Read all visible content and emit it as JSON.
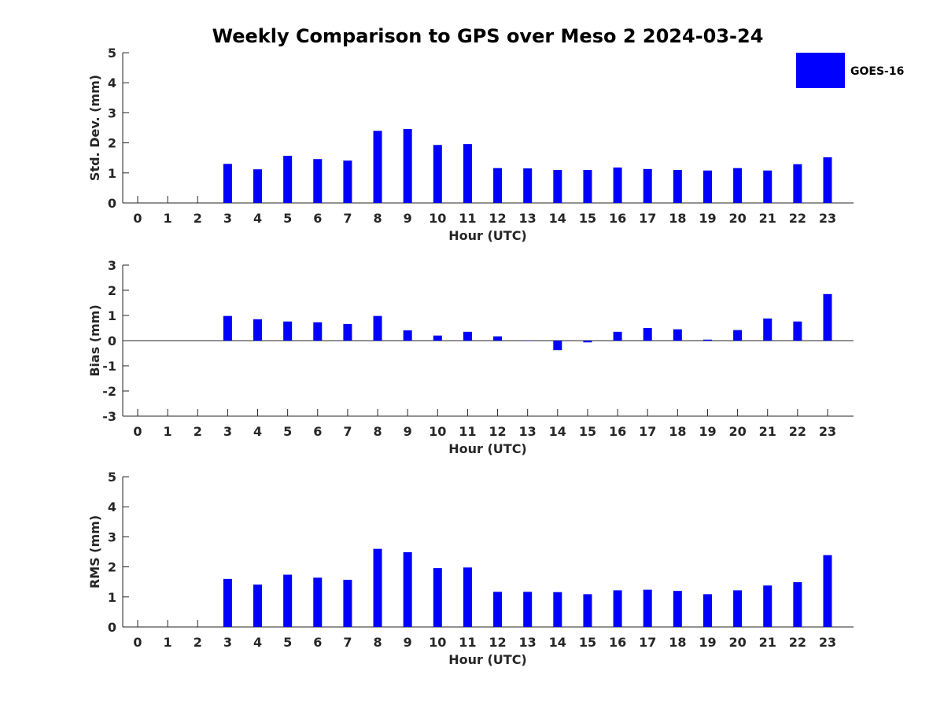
{
  "title": "Weekly Comparison to GPS over Meso 2 2024-03-24",
  "legend": {
    "label": "GOES-16",
    "color": "#0000ff",
    "position": "top-right"
  },
  "chart_data": [
    {
      "type": "bar",
      "id": "std",
      "ylabel": "Std. Dev. (mm)",
      "xlabel": "Hour (UTC)",
      "ylim": [
        0,
        5
      ],
      "yticks": [
        0,
        1,
        2,
        3,
        4,
        5
      ],
      "categories": [
        "0",
        "1",
        "2",
        "3",
        "4",
        "5",
        "6",
        "7",
        "8",
        "9",
        "10",
        "11",
        "12",
        "13",
        "14",
        "15",
        "16",
        "17",
        "18",
        "19",
        "20",
        "21",
        "22",
        "23"
      ],
      "series": [
        {
          "name": "GOES-16",
          "values": [
            null,
            null,
            null,
            1.3,
            1.12,
            1.57,
            1.46,
            1.41,
            2.4,
            2.46,
            1.93,
            1.96,
            1.16,
            1.15,
            1.1,
            1.1,
            1.18,
            1.13,
            1.1,
            1.08,
            1.16,
            1.08,
            1.29,
            1.52
          ]
        }
      ]
    },
    {
      "type": "bar",
      "id": "bias",
      "ylabel": "Bias (mm)",
      "xlabel": "Hour (UTC)",
      "ylim": [
        -3,
        3
      ],
      "yticks": [
        -3,
        -2,
        -1,
        0,
        1,
        2,
        3
      ],
      "categories": [
        "0",
        "1",
        "2",
        "3",
        "4",
        "5",
        "6",
        "7",
        "8",
        "9",
        "10",
        "11",
        "12",
        "13",
        "14",
        "15",
        "16",
        "17",
        "18",
        "19",
        "20",
        "21",
        "22",
        "23"
      ],
      "series": [
        {
          "name": "GOES-16",
          "values": [
            null,
            null,
            null,
            0.98,
            0.85,
            0.76,
            0.73,
            0.66,
            0.98,
            0.41,
            0.2,
            0.35,
            0.17,
            0.0,
            -0.38,
            -0.07,
            0.35,
            0.5,
            0.45,
            0.04,
            0.42,
            0.88,
            0.76,
            1.85
          ]
        }
      ]
    },
    {
      "type": "bar",
      "id": "rms",
      "ylabel": "RMS (mm)",
      "xlabel": "Hour (UTC)",
      "ylim": [
        0,
        5
      ],
      "yticks": [
        0,
        1,
        2,
        3,
        4,
        5
      ],
      "categories": [
        "0",
        "1",
        "2",
        "3",
        "4",
        "5",
        "6",
        "7",
        "8",
        "9",
        "10",
        "11",
        "12",
        "13",
        "14",
        "15",
        "16",
        "17",
        "18",
        "19",
        "20",
        "21",
        "22",
        "23"
      ],
      "series": [
        {
          "name": "GOES-16",
          "values": [
            null,
            null,
            null,
            1.6,
            1.41,
            1.74,
            1.64,
            1.57,
            2.6,
            2.49,
            1.96,
            1.98,
            1.17,
            1.17,
            1.16,
            1.09,
            1.22,
            1.24,
            1.2,
            1.09,
            1.22,
            1.38,
            1.49,
            2.39
          ]
        }
      ]
    }
  ]
}
